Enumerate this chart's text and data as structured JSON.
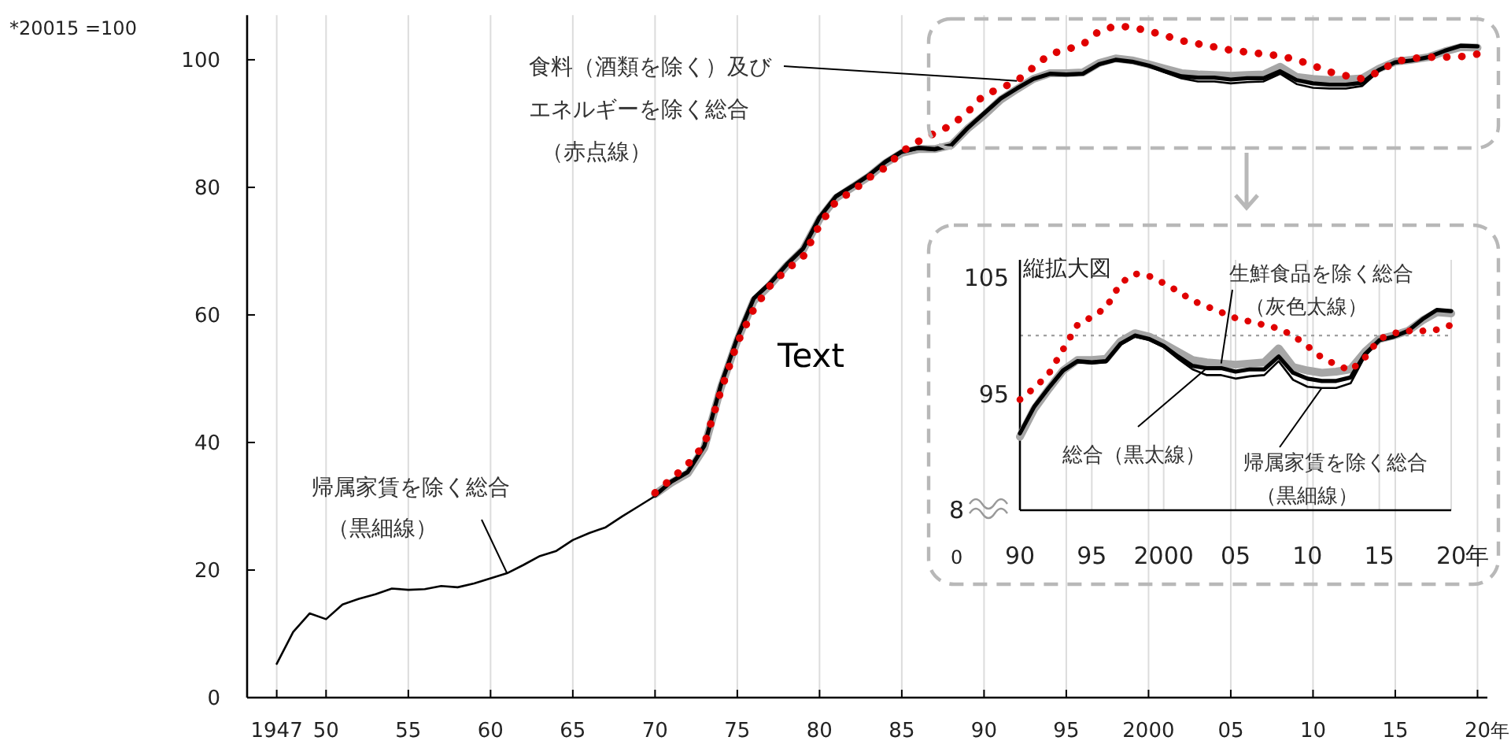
{
  "chart_data": [
    {
      "type": "line",
      "xlim": [
        1945.2,
        2020.6
      ],
      "ylim": [
        0,
        107
      ],
      "grid": "x",
      "xticks": [
        {
          "value": 1947,
          "label": "1947"
        },
        {
          "value": 1950,
          "label": "50"
        },
        {
          "value": 1955,
          "label": "55"
        },
        {
          "value": 1960,
          "label": "60"
        },
        {
          "value": 1965,
          "label": "65"
        },
        {
          "value": 1970,
          "label": "70"
        },
        {
          "value": 1975,
          "label": "75"
        },
        {
          "value": 1980,
          "label": "80"
        },
        {
          "value": 1985,
          "label": "85"
        },
        {
          "value": 1990,
          "label": "90"
        },
        {
          "value": 1995,
          "label": "95"
        },
        {
          "value": 2000,
          "label": "2000"
        },
        {
          "value": 2005,
          "label": "05"
        },
        {
          "value": 2010,
          "label": "10"
        },
        {
          "value": 2015,
          "label": "15"
        },
        {
          "value": 2020,
          "label": "20"
        }
      ],
      "yticks": [
        0,
        20,
        40,
        60,
        80,
        100
      ],
      "series": [
        {
          "color": "#a6a6a6",
          "line_style": "solid",
          "x": [
            1970,
            1971,
            1972,
            1973,
            1974,
            1975,
            1976,
            1977,
            1978,
            1979,
            1980,
            1981,
            1982,
            1983,
            1984,
            1985,
            1986,
            1987,
            1988,
            1989,
            1990,
            1991,
            1992,
            1993,
            1994,
            1995,
            1996,
            1997,
            1998,
            1999,
            2000,
            2001,
            2002,
            2003,
            2004,
            2005,
            2006,
            2007,
            2008,
            2009,
            2010,
            2011,
            2012,
            2013,
            2014,
            2015,
            2016,
            2017,
            2018,
            2019,
            2020
          ],
          "values": [
            31.9,
            33.7,
            35.2,
            39.2,
            48.6,
            56.0,
            62.2,
            64.7,
            67.7,
            70.2,
            75.0,
            78.3,
            80.0,
            81.7,
            83.8,
            85.4,
            86.0,
            86.0,
            86.6,
            89.2,
            91.3,
            93.7,
            95.4,
            97.0,
            97.9,
            97.9,
            98.0,
            99.5,
            100.2,
            99.9,
            99.3,
            98.6,
            97.9,
            97.7,
            97.6,
            97.5,
            97.6,
            97.7,
            98.9,
            97.3,
            97.0,
            96.8,
            96.9,
            97.1,
            98.6,
            99.7,
            100.0,
            100.4,
            101.3,
            102.0,
            101.9
          ]
        },
        {
          "color": "#000000",
          "line_style": "solid",
          "x": [
            1970,
            1971,
            1972,
            1973,
            1974,
            1975,
            1976,
            1977,
            1978,
            1979,
            1980,
            1981,
            1982,
            1983,
            1984,
            1985,
            1986,
            1987,
            1988,
            1989,
            1990,
            1991,
            1992,
            1993,
            1994,
            1995,
            1996,
            1997,
            1998,
            1999,
            2000,
            2001,
            2002,
            2003,
            2004,
            2005,
            2006,
            2007,
            2008,
            2009,
            2010,
            2011,
            2012,
            2013,
            2014,
            2015,
            2016,
            2017,
            2018,
            2019,
            2020
          ],
          "values": [
            31.7,
            33.9,
            35.4,
            39.5,
            49.0,
            56.4,
            62.6,
            65.0,
            67.9,
            70.4,
            75.3,
            78.6,
            80.2,
            81.9,
            84.0,
            85.6,
            86.2,
            86.0,
            86.6,
            89.3,
            91.6,
            93.9,
            95.5,
            97.0,
            97.8,
            97.7,
            97.8,
            99.3,
            100.0,
            99.7,
            99.1,
            98.2,
            97.4,
            97.2,
            97.2,
            96.9,
            97.1,
            97.1,
            98.2,
            96.8,
            96.3,
            96.1,
            96.1,
            96.4,
            98.4,
            99.6,
            99.9,
            100.4,
            101.4,
            102.2,
            102.1
          ]
        },
        {
          "color": "#000000",
          "line_style": "solid",
          "x": [
            1947,
            1948,
            1949,
            1950,
            1951,
            1952,
            1953,
            1954,
            1955,
            1956,
            1957,
            1958,
            1959,
            1960,
            1961,
            1962,
            1963,
            1964,
            1965,
            1966,
            1967,
            1968,
            1969,
            1970,
            1971,
            1972,
            1973,
            1974,
            1975,
            1976,
            1977,
            1978,
            1979,
            1980,
            1981,
            1982,
            1983,
            1984,
            1985,
            1986,
            1987,
            1988,
            1989,
            1990,
            1991,
            1992,
            1993,
            1994,
            1995,
            1996,
            1997,
            1998,
            1999,
            2000,
            2001,
            2002,
            2003,
            2004,
            2005,
            2006,
            2007,
            2008,
            2009,
            2010,
            2011,
            2012,
            2013,
            2014,
            2015,
            2016,
            2017,
            2018,
            2019,
            2020
          ],
          "values": [
            5.3,
            10.3,
            13.2,
            12.3,
            14.6,
            15.5,
            16.2,
            17.1,
            16.9,
            17.0,
            17.5,
            17.3,
            17.9,
            18.7,
            19.5,
            20.8,
            22.2,
            23.0,
            24.7,
            25.8,
            26.7,
            28.4,
            30.0,
            31.6,
            33.7,
            35.2,
            39.3,
            48.8,
            56.2,
            62.4,
            64.8,
            67.7,
            70.2,
            75.1,
            78.4,
            80.0,
            81.7,
            83.8,
            85.4,
            86.0,
            85.8,
            86.4,
            89.1,
            91.5,
            93.8,
            95.4,
            96.9,
            97.7,
            97.6,
            97.7,
            99.2,
            99.9,
            99.6,
            99.0,
            98.0,
            97.1,
            96.6,
            96.6,
            96.3,
            96.5,
            96.6,
            97.8,
            96.2,
            95.6,
            95.5,
            95.5,
            95.9,
            98.2,
            99.6,
            99.9,
            100.4,
            101.4,
            102.2,
            102.1
          ]
        },
        {
          "color": "#e00000",
          "line_style": "dotted",
          "x": [
            1970,
            1971,
            1972,
            1973,
            1974,
            1975,
            1976,
            1977,
            1978,
            1979,
            1980,
            1981,
            1982,
            1983,
            1984,
            1985,
            1986,
            1987,
            1988,
            1989,
            1990,
            1991,
            1992,
            1993,
            1994,
            1995,
            1996,
            1997,
            1998,
            1999,
            2000,
            2001,
            2002,
            2003,
            2004,
            2005,
            2006,
            2007,
            2008,
            2009,
            2010,
            2011,
            2012,
            2013,
            2014,
            2015,
            2016,
            2017,
            2018,
            2019,
            2020
          ],
          "values": [
            32.1,
            34.3,
            36.6,
            39.7,
            48.1,
            55.6,
            60.9,
            64.6,
            67.1,
            69.1,
            74.1,
            77.8,
            79.4,
            81.5,
            83.1,
            85.6,
            87.2,
            88.5,
            89.7,
            91.8,
            94.5,
            95.5,
            96.7,
            98.8,
            100.9,
            101.6,
            102.4,
            104.5,
            105.3,
            105.1,
            104.5,
            103.8,
            103.0,
            102.5,
            102.0,
            101.5,
            101.2,
            100.9,
            100.6,
            100.0,
            99.1,
            98.1,
            97.5,
            97.0,
            98.1,
            99.7,
            100.2,
            100.4,
            100.4,
            100.5,
            100.9
          ]
        }
      ],
      "annotations": [
        "*20015 =100",
        {
          "text": "食料（酒類を除く）及びエネルギーを除く総合（赤点線）",
          "x": 1992,
          "y": 96.7
        },
        {
          "text": "帰属家賃を除く総合（黒細線）",
          "x": 1961,
          "y": 19.5
        },
        "Text",
        "年"
      ]
    },
    {
      "type": "line",
      "title": "縦拡大図",
      "xlim": [
        1990,
        2020
      ],
      "ylim": [
        85,
        106.5
      ],
      "grid": "x",
      "xticks": [
        {
          "value": 1990,
          "label": "90"
        },
        {
          "value": 1995,
          "label": "95"
        },
        {
          "value": 2000,
          "label": "2000"
        },
        {
          "value": 2005,
          "label": "05"
        },
        {
          "value": 2010,
          "label": "10"
        },
        {
          "value": 2015,
          "label": "15"
        },
        {
          "value": 2020,
          "label": "20"
        }
      ],
      "yticks": [
        105,
        95
      ],
      "ref_lines": [
        {
          "axis": "y",
          "value": 100,
          "color": "#a0a0a0",
          "line_style": "dotted"
        }
      ],
      "x": [
        1990,
        1991,
        1992,
        1993,
        1994,
        1995,
        1996,
        1997,
        1998,
        1999,
        2000,
        2001,
        2002,
        2003,
        2004,
        2005,
        2006,
        2007,
        2008,
        2009,
        2010,
        2011,
        2012,
        2013,
        2014,
        2015,
        2016,
        2017,
        2018,
        2019,
        2020
      ],
      "series": [
        {
          "color": "#a6a6a6",
          "line_style": "solid",
          "values": [
            91.3,
            93.7,
            95.4,
            97.0,
            97.9,
            97.9,
            98.0,
            99.5,
            100.2,
            99.9,
            99.3,
            98.6,
            97.9,
            97.7,
            97.6,
            97.5,
            97.6,
            97.7,
            98.9,
            97.3,
            97.0,
            96.8,
            96.9,
            97.1,
            98.6,
            99.7,
            100.0,
            100.4,
            101.3,
            102.0,
            101.9
          ]
        },
        {
          "color": "#000000",
          "line_style": "solid",
          "values": [
            91.6,
            93.9,
            95.5,
            97.0,
            97.8,
            97.7,
            97.8,
            99.3,
            100.0,
            99.7,
            99.1,
            98.2,
            97.4,
            97.2,
            97.2,
            96.9,
            97.1,
            97.1,
            98.2,
            96.8,
            96.3,
            96.1,
            96.1,
            96.4,
            98.4,
            99.6,
            99.9,
            100.4,
            101.4,
            102.2,
            102.1
          ]
        },
        {
          "color": "#000000",
          "line_style": "solid",
          "values": [
            91.5,
            93.8,
            95.4,
            96.9,
            97.7,
            97.6,
            97.7,
            99.2,
            99.9,
            99.6,
            99.0,
            98.0,
            97.1,
            96.6,
            96.6,
            96.3,
            96.5,
            96.6,
            97.8,
            96.2,
            95.6,
            95.5,
            95.5,
            95.9,
            98.2,
            99.6,
            99.9,
            100.4,
            101.4,
            102.2,
            102.1
          ]
        },
        {
          "color": "#e00000",
          "line_style": "dotted",
          "values": [
            94.5,
            95.5,
            96.7,
            98.8,
            100.9,
            101.6,
            102.4,
            104.5,
            105.3,
            105.1,
            104.5,
            103.8,
            103.0,
            102.5,
            102.0,
            101.5,
            101.2,
            100.9,
            100.6,
            100.0,
            99.1,
            98.1,
            97.5,
            97.0,
            98.1,
            99.7,
            100.2,
            100.4,
            100.4,
            100.5,
            100.9
          ]
        }
      ],
      "annotations": [
        {
          "text": "生鮮食品を除く総合（灰色太線）",
          "x": 2004,
          "y": 97.6
        },
        {
          "text": "総合（黒太線）",
          "x": 2003,
          "y": 97.2
        },
        {
          "text": "帰属家賃を除く総合（黒細線）",
          "x": 2011,
          "y": 95.5
        },
        "0",
        "年",
        "8"
      ]
    }
  ]
}
